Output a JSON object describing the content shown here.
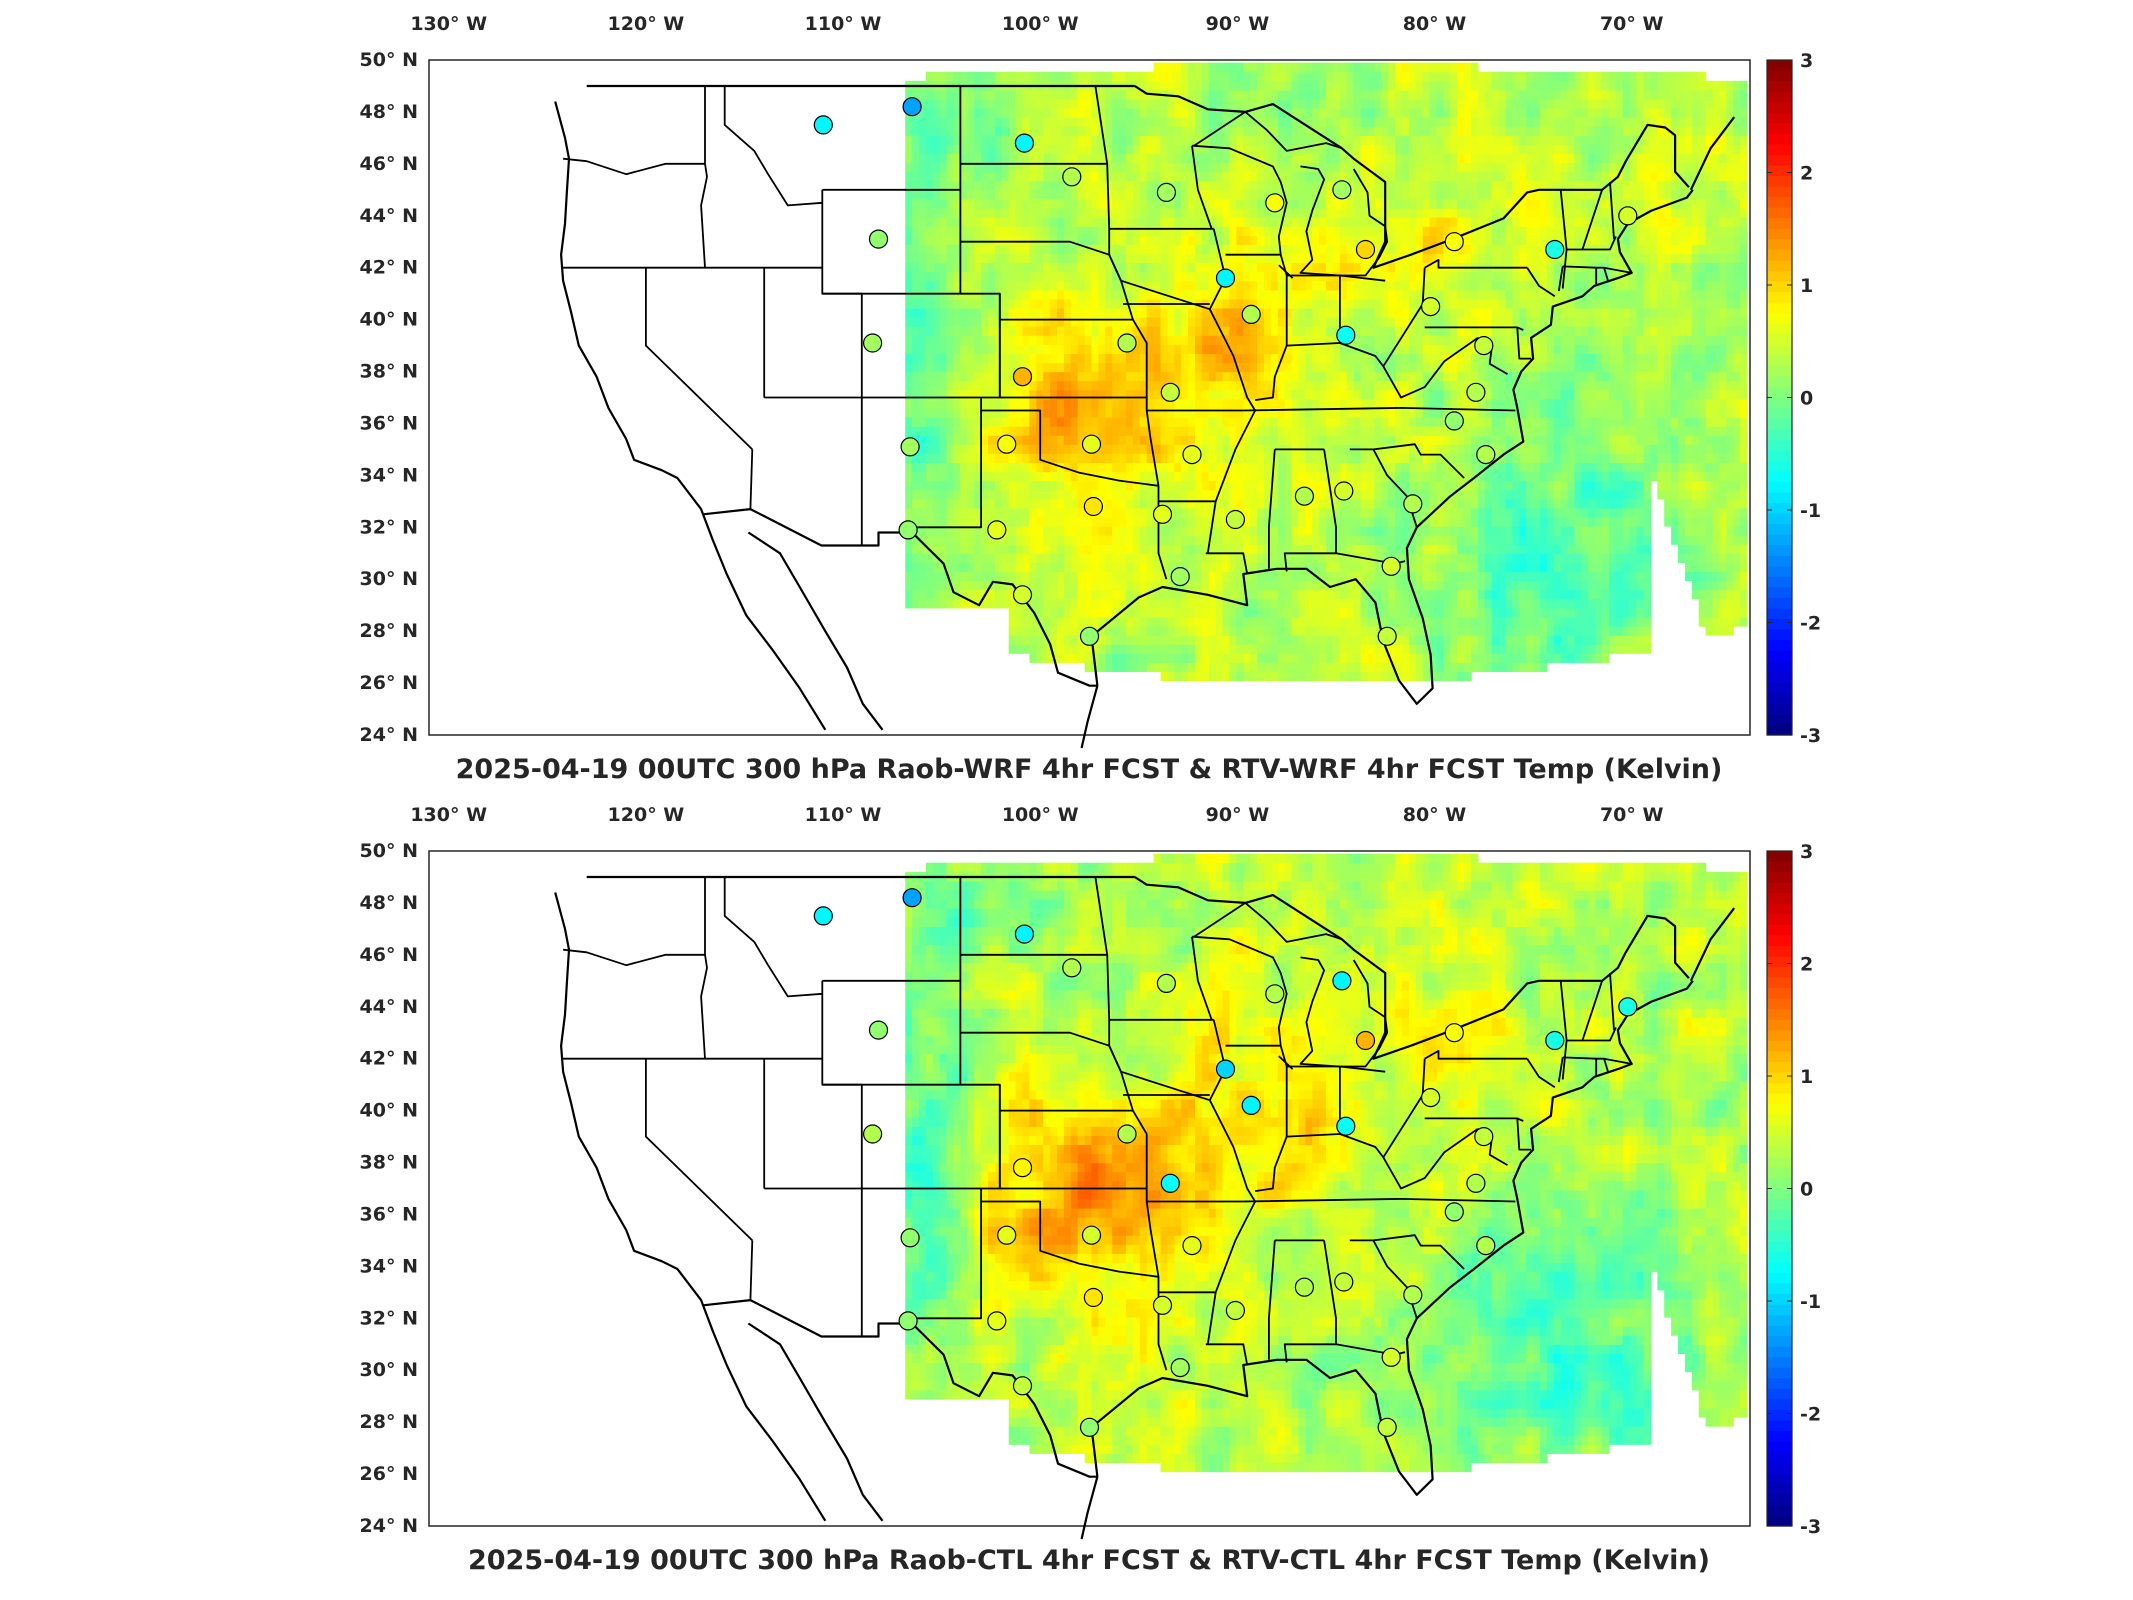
{
  "figure": {
    "panels": [
      {
        "id": "top",
        "title": "2025-04-19 00UTC 300 hPa Raob-WRF 4hr FCST & RTV-WRF 4hr FCST Temp (Kelvin)",
        "field_seed": 7,
        "stations": [
          {
            "lon": -111.0,
            "lat": 47.5,
            "v": -0.8
          },
          {
            "lon": -106.5,
            "lat": 48.2,
            "v": -1.3
          },
          {
            "lon": -100.8,
            "lat": 46.8,
            "v": -0.8
          },
          {
            "lon": -98.4,
            "lat": 45.5,
            "v": 0.3
          },
          {
            "lon": -93.6,
            "lat": 44.9,
            "v": 0.2
          },
          {
            "lon": -108.2,
            "lat": 43.1,
            "v": 0.1
          },
          {
            "lon": -88.1,
            "lat": 44.5,
            "v": 0.7
          },
          {
            "lon": -84.7,
            "lat": 45.0,
            "v": 0.2
          },
          {
            "lon": -83.5,
            "lat": 42.7,
            "v": 1.0
          },
          {
            "lon": -90.6,
            "lat": 41.6,
            "v": -0.8
          },
          {
            "lon": -79.0,
            "lat": 43.0,
            "v": 0.7
          },
          {
            "lon": -73.9,
            "lat": 42.7,
            "v": -0.6
          },
          {
            "lon": -70.2,
            "lat": 44.0,
            "v": 0.5
          },
          {
            "lon": -108.5,
            "lat": 39.1,
            "v": 0.2
          },
          {
            "lon": -95.6,
            "lat": 39.1,
            "v": 0.3
          },
          {
            "lon": -89.3,
            "lat": 40.2,
            "v": 0.3
          },
          {
            "lon": -84.5,
            "lat": 39.4,
            "v": -0.7
          },
          {
            "lon": -80.2,
            "lat": 40.5,
            "v": 0.5
          },
          {
            "lon": -77.5,
            "lat": 39.0,
            "v": 0.4
          },
          {
            "lon": -100.9,
            "lat": 37.8,
            "v": 1.2
          },
          {
            "lon": -93.4,
            "lat": 37.2,
            "v": 0.4
          },
          {
            "lon": -77.9,
            "lat": 37.2,
            "v": 0.3
          },
          {
            "lon": -106.6,
            "lat": 35.1,
            "v": 0.2
          },
          {
            "lon": -101.7,
            "lat": 35.2,
            "v": 0.7
          },
          {
            "lon": -97.4,
            "lat": 35.2,
            "v": 0.6
          },
          {
            "lon": -92.3,
            "lat": 34.8,
            "v": 0.6
          },
          {
            "lon": -77.4,
            "lat": 34.8,
            "v": 0.3
          },
          {
            "lon": -79.0,
            "lat": 36.1,
            "v": 0.1
          },
          {
            "lon": -106.7,
            "lat": 31.9,
            "v": 0.1
          },
          {
            "lon": -102.2,
            "lat": 31.9,
            "v": 0.6
          },
          {
            "lon": -97.3,
            "lat": 32.8,
            "v": 0.9
          },
          {
            "lon": -93.8,
            "lat": 32.5,
            "v": 0.6
          },
          {
            "lon": -90.1,
            "lat": 32.3,
            "v": 0.4
          },
          {
            "lon": -86.6,
            "lat": 33.2,
            "v": 0.3
          },
          {
            "lon": -84.6,
            "lat": 33.4,
            "v": 0.5
          },
          {
            "lon": -81.1,
            "lat": 32.9,
            "v": 0.3
          },
          {
            "lon": -100.9,
            "lat": 29.4,
            "v": 0.5
          },
          {
            "lon": -97.5,
            "lat": 27.8,
            "v": 0.1
          },
          {
            "lon": -92.9,
            "lat": 30.1,
            "v": 0.2
          },
          {
            "lon": -82.2,
            "lat": 30.5,
            "v": 0.5
          },
          {
            "lon": -82.4,
            "lat": 27.8,
            "v": 0.4
          }
        ]
      },
      {
        "id": "bottom",
        "title": "2025-04-19 00UTC 300 hPa Raob-CTL 4hr FCST & RTV-CTL 4hr FCST Temp (Kelvin)",
        "field_seed": 19,
        "stations": [
          {
            "lon": -111.0,
            "lat": 47.5,
            "v": -0.8
          },
          {
            "lon": -106.5,
            "lat": 48.2,
            "v": -1.3
          },
          {
            "lon": -100.8,
            "lat": 46.8,
            "v": -0.8
          },
          {
            "lon": -98.4,
            "lat": 45.5,
            "v": 0.3
          },
          {
            "lon": -93.6,
            "lat": 44.9,
            "v": 0.3
          },
          {
            "lon": -108.2,
            "lat": 43.1,
            "v": 0.1
          },
          {
            "lon": -88.1,
            "lat": 44.5,
            "v": 0.3
          },
          {
            "lon": -84.7,
            "lat": 45.0,
            "v": -0.8
          },
          {
            "lon": -83.5,
            "lat": 42.7,
            "v": 1.2
          },
          {
            "lon": -90.6,
            "lat": 41.6,
            "v": -1.0
          },
          {
            "lon": -79.0,
            "lat": 43.0,
            "v": 0.7
          },
          {
            "lon": -73.9,
            "lat": 42.7,
            "v": -0.6
          },
          {
            "lon": -70.2,
            "lat": 44.0,
            "v": -0.6
          },
          {
            "lon": -108.5,
            "lat": 39.1,
            "v": 0.3
          },
          {
            "lon": -95.6,
            "lat": 39.1,
            "v": 0.3
          },
          {
            "lon": -89.3,
            "lat": 40.2,
            "v": -0.8
          },
          {
            "lon": -84.5,
            "lat": 39.4,
            "v": -0.7
          },
          {
            "lon": -80.2,
            "lat": 40.5,
            "v": 0.5
          },
          {
            "lon": -77.5,
            "lat": 39.0,
            "v": 0.4
          },
          {
            "lon": -100.9,
            "lat": 37.8,
            "v": 0.8
          },
          {
            "lon": -93.4,
            "lat": 37.2,
            "v": -0.7
          },
          {
            "lon": -77.9,
            "lat": 37.2,
            "v": 0.3
          },
          {
            "lon": -106.6,
            "lat": 35.1,
            "v": 0.1
          },
          {
            "lon": -101.7,
            "lat": 35.2,
            "v": 0.6
          },
          {
            "lon": -97.4,
            "lat": 35.2,
            "v": 0.5
          },
          {
            "lon": -92.3,
            "lat": 34.8,
            "v": 0.6
          },
          {
            "lon": -77.4,
            "lat": 34.8,
            "v": 0.3
          },
          {
            "lon": -79.0,
            "lat": 36.1,
            "v": 0.1
          },
          {
            "lon": -106.7,
            "lat": 31.9,
            "v": 0.1
          },
          {
            "lon": -102.2,
            "lat": 31.9,
            "v": 0.6
          },
          {
            "lon": -97.3,
            "lat": 32.8,
            "v": 0.9
          },
          {
            "lon": -93.8,
            "lat": 32.5,
            "v": 0.5
          },
          {
            "lon": -90.1,
            "lat": 32.3,
            "v": 0.4
          },
          {
            "lon": -86.6,
            "lat": 33.2,
            "v": 0.3
          },
          {
            "lon": -84.6,
            "lat": 33.4,
            "v": 0.4
          },
          {
            "lon": -81.1,
            "lat": 32.9,
            "v": 0.3
          },
          {
            "lon": -100.9,
            "lat": 29.4,
            "v": 0.4
          },
          {
            "lon": -97.5,
            "lat": 27.8,
            "v": 0.1
          },
          {
            "lon": -92.9,
            "lat": 30.1,
            "v": 0.2
          },
          {
            "lon": -82.2,
            "lat": 30.5,
            "v": 0.5
          },
          {
            "lon": -82.4,
            "lat": 27.8,
            "v": 0.4
          }
        ]
      }
    ],
    "lon_labels": [
      "130° W",
      "120° W",
      "110° W",
      "100° W",
      "90° W",
      "80° W",
      "70° W"
    ],
    "lon_ticks": [
      -130,
      -120,
      -110,
      -100,
      -90,
      -80,
      -70
    ],
    "lat_labels": [
      "50° N",
      "48° N",
      "46° N",
      "44° N",
      "42° N",
      "40° N",
      "38° N",
      "36° N",
      "34° N",
      "32° N",
      "30° N",
      "28° N",
      "26° N",
      "24° N"
    ],
    "lat_ticks": [
      50,
      48,
      46,
      44,
      42,
      40,
      38,
      36,
      34,
      32,
      30,
      28,
      26,
      24
    ],
    "colorbar": {
      "labels": [
        "3",
        "2",
        "1",
        "0",
        "-1",
        "-2",
        "-3"
      ],
      "values": [
        3,
        2,
        1,
        0,
        -1,
        -2,
        -3
      ],
      "colormap": "jet",
      "vmin": -3,
      "vmax": 3
    },
    "map_extent": {
      "lon_min": -131,
      "lon_max": -64,
      "lat_min": 24,
      "lat_max": 50
    }
  }
}
